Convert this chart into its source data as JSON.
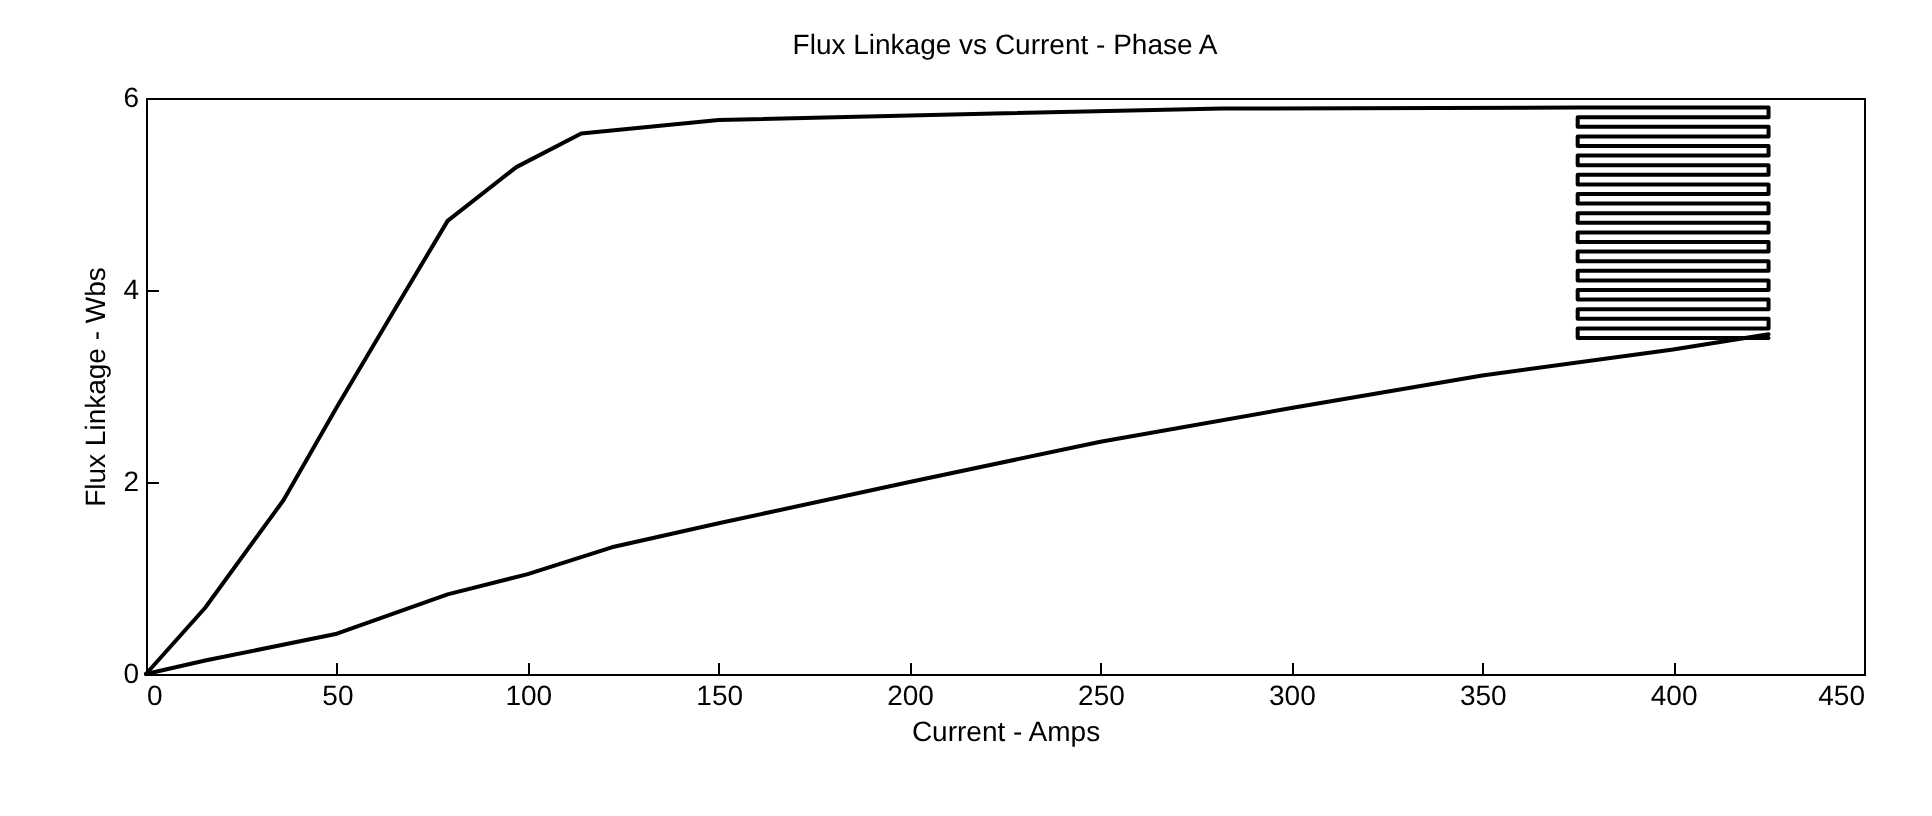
{
  "chart_data": {
    "type": "line",
    "title": "Flux Linkage vs Current - Phase A",
    "xlabel": "Current - Amps",
    "ylabel": "Flux Linkage - Wbs",
    "xlim": [
      0,
      450
    ],
    "xticks": [
      0,
      50,
      100,
      150,
      200,
      250,
      300,
      350,
      400,
      450
    ],
    "ylim": [
      0,
      6
    ],
    "yticks": [
      0,
      2,
      4,
      6
    ],
    "grid": false,
    "marker": "none",
    "line_style": "solid",
    "series": [
      {
        "color": "#000000",
        "x": [
          0,
          15.5,
          36,
          50,
          65.5,
          79,
          97,
          114,
          150,
          225,
          282,
          375,
          425,
          425,
          375,
          375,
          425,
          425,
          375,
          375,
          425,
          425,
          375,
          375,
          425,
          425,
          375,
          375,
          425,
          425,
          375,
          375,
          425,
          425,
          375,
          375,
          425,
          425,
          375,
          375,
          425,
          425,
          375,
          375,
          425,
          425,
          375,
          375,
          425,
          425,
          375,
          375,
          425,
          425,
          375,
          375,
          425,
          425,
          375,
          375,
          425
        ],
        "values": [
          0,
          0.69,
          1.81,
          2.78,
          3.82,
          4.72,
          5.28,
          5.63,
          5.77,
          5.84,
          5.89,
          5.9,
          5.9,
          5.8,
          5.8,
          5.7,
          5.7,
          5.6,
          5.6,
          5.5,
          5.5,
          5.4,
          5.4,
          5.3,
          5.3,
          5.2,
          5.2,
          5.1,
          5.1,
          5.0,
          5.0,
          4.9,
          4.9,
          4.8,
          4.8,
          4.7,
          4.7,
          4.6,
          4.6,
          4.5,
          4.5,
          4.4,
          4.4,
          4.3,
          4.3,
          4.2,
          4.2,
          4.1,
          4.1,
          4.0,
          4.0,
          3.9,
          3.9,
          3.8,
          3.8,
          3.7,
          3.7,
          3.6,
          3.6,
          3.5,
          3.5
        ]
      },
      {
        "color": "#000000",
        "x": [
          0,
          15.5,
          50,
          79,
          100,
          122,
          150,
          200,
          250,
          300,
          350,
          400,
          425
        ],
        "values": [
          0,
          0.14,
          0.42,
          0.83,
          1.04,
          1.32,
          1.57,
          2.0,
          2.42,
          2.77,
          3.11,
          3.38,
          3.54
        ]
      }
    ]
  }
}
